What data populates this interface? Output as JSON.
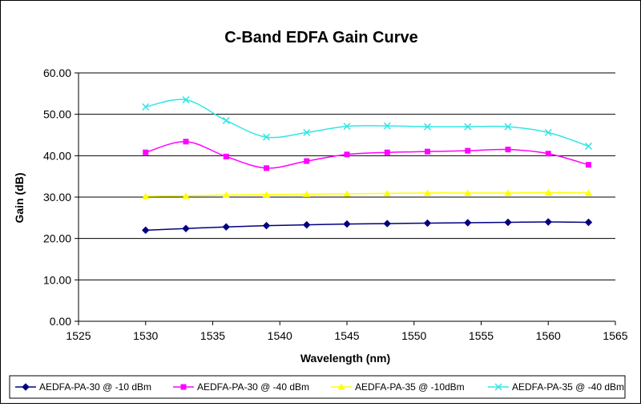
{
  "chart_data": {
    "type": "line",
    "title": "C-Band EDFA Gain Curve",
    "xlabel": "Wavelength (nm)",
    "ylabel": "Gain (dB)",
    "xlim": [
      1525,
      1565
    ],
    "ylim": [
      0,
      60
    ],
    "xticks": [
      "1525",
      "1530",
      "1535",
      "1540",
      "1545",
      "1550",
      "1555",
      "1560",
      "1565"
    ],
    "yticks": [
      "0.00",
      "10.00",
      "20.00",
      "30.00",
      "40.00",
      "50.00",
      "60.00"
    ],
    "grid": "horizontal",
    "legend_position": "bottom",
    "x": [
      1530,
      1533,
      1536,
      1539,
      1542,
      1545,
      1548,
      1551,
      1554,
      1557,
      1560,
      1563
    ],
    "series": [
      {
        "name": "AEDFA-PA-30 @ -10 dBm",
        "color": "#000080",
        "marker": "diamond",
        "values": [
          22.0,
          22.4,
          22.8,
          23.1,
          23.3,
          23.5,
          23.6,
          23.7,
          23.8,
          23.9,
          24.0,
          23.9
        ]
      },
      {
        "name": "AEDFA-PA-30 @ -40 dBm",
        "color": "#ff00ff",
        "marker": "square",
        "values": [
          40.8,
          43.4,
          39.8,
          37.0,
          38.7,
          40.3,
          40.8,
          41.0,
          41.2,
          41.5,
          40.5,
          37.8
        ]
      },
      {
        "name": "AEDFA-PA-35 @ -10dBm",
        "color": "#ffff00",
        "marker": "triangle",
        "values": [
          30.2,
          30.3,
          30.5,
          30.6,
          30.7,
          30.8,
          30.9,
          31.0,
          31.0,
          31.0,
          31.1,
          31.0
        ]
      },
      {
        "name": "AEDFA-PA-35 @ -40 dBm",
        "color": "#33e5e5",
        "marker": "x",
        "values": [
          51.8,
          53.5,
          48.5,
          44.5,
          45.6,
          47.1,
          47.2,
          47.0,
          47.0,
          47.0,
          45.6,
          42.3
        ]
      }
    ]
  }
}
